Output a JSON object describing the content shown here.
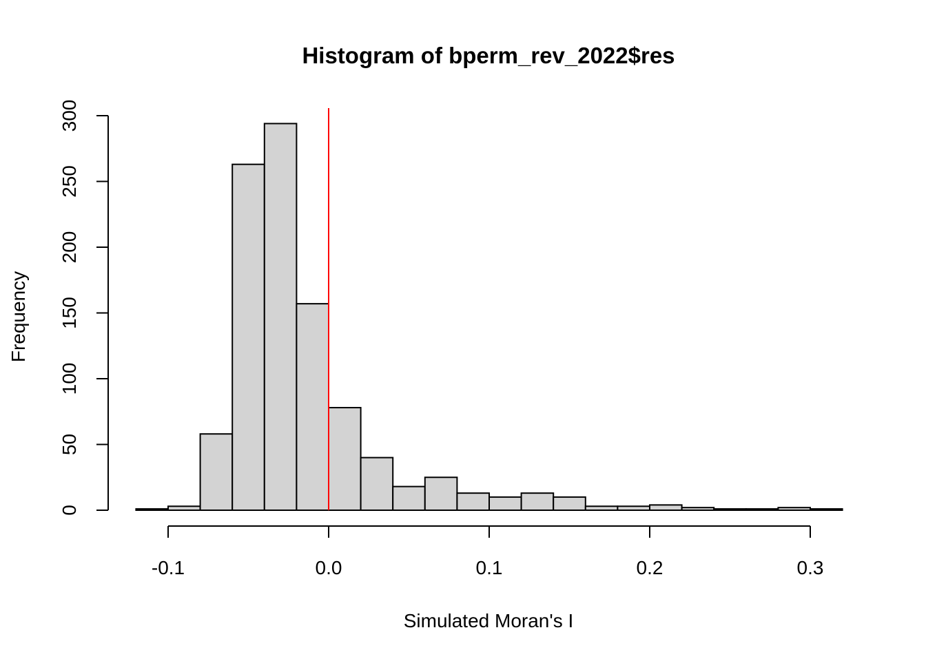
{
  "chart_data": {
    "type": "bar",
    "title": "Histogram of bperm_rev_2022$res",
    "xlabel": "Simulated Moran's I",
    "ylabel": "Frequency",
    "bin_width": 0.02,
    "bins": [
      {
        "start": -0.12,
        "end": -0.1,
        "count": 1
      },
      {
        "start": -0.1,
        "end": -0.08,
        "count": 3
      },
      {
        "start": -0.08,
        "end": -0.06,
        "count": 58
      },
      {
        "start": -0.06,
        "end": -0.04,
        "count": 263
      },
      {
        "start": -0.04,
        "end": -0.02,
        "count": 294
      },
      {
        "start": -0.02,
        "end": 0.0,
        "count": 157
      },
      {
        "start": 0.0,
        "end": 0.02,
        "count": 78
      },
      {
        "start": 0.02,
        "end": 0.04,
        "count": 40
      },
      {
        "start": 0.04,
        "end": 0.06,
        "count": 18
      },
      {
        "start": 0.06,
        "end": 0.08,
        "count": 25
      },
      {
        "start": 0.08,
        "end": 0.1,
        "count": 13
      },
      {
        "start": 0.1,
        "end": 0.12,
        "count": 10
      },
      {
        "start": 0.12,
        "end": 0.14,
        "count": 13
      },
      {
        "start": 0.14,
        "end": 0.16,
        "count": 10
      },
      {
        "start": 0.16,
        "end": 0.18,
        "count": 3
      },
      {
        "start": 0.18,
        "end": 0.2,
        "count": 3
      },
      {
        "start": 0.2,
        "end": 0.22,
        "count": 4
      },
      {
        "start": 0.22,
        "end": 0.24,
        "count": 2
      },
      {
        "start": 0.24,
        "end": 0.26,
        "count": 1
      },
      {
        "start": 0.26,
        "end": 0.28,
        "count": 1
      },
      {
        "start": 0.28,
        "end": 0.3,
        "count": 2
      },
      {
        "start": 0.3,
        "end": 0.32,
        "count": 1
      }
    ],
    "xlim": [
      -0.12,
      0.32
    ],
    "ylim": [
      0,
      300
    ],
    "x_ticks": [
      -0.1,
      0.0,
      0.1,
      0.2,
      0.3
    ],
    "x_tick_labels": [
      "-0.1",
      "0.0",
      "0.1",
      "0.2",
      "0.3"
    ],
    "y_ticks": [
      0,
      50,
      100,
      150,
      200,
      250,
      300
    ],
    "y_tick_labels": [
      "0",
      "50",
      "100",
      "150",
      "200",
      "250",
      "300"
    ],
    "reference_line": {
      "x": 0.0,
      "color": "#ff0000"
    },
    "bar_fill": "#d3d3d3",
    "bar_stroke": "#000000",
    "grid": false,
    "legend": "none"
  }
}
